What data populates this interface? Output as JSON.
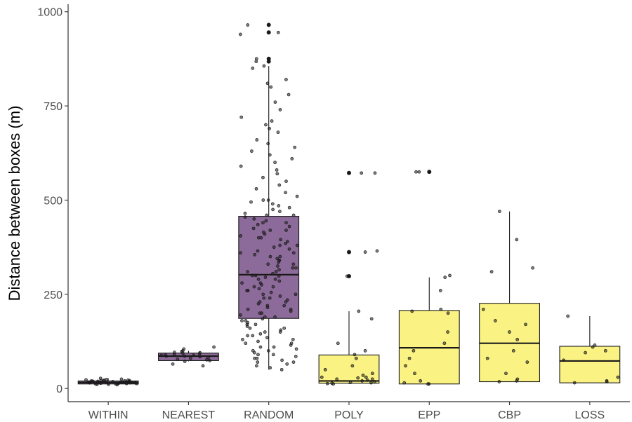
{
  "chart_data": {
    "type": "boxplot",
    "title": "",
    "xlabel": "",
    "ylabel": "Distance between boxes (m)",
    "ylim": [
      -35,
      1020
    ],
    "yticks": [
      0,
      250,
      500,
      750,
      1000
    ],
    "grid": false,
    "legend": "none",
    "colors": {
      "purple": "#8c6a99",
      "yellow": "#faf283",
      "box_stroke": "#1a1a1a",
      "point": "#1a1a1a",
      "axis": "#333333"
    },
    "categories": [
      "WITHIN",
      "NEAREST",
      "RANDOM",
      "POLY",
      "EPP",
      "CBP",
      "LOSS"
    ],
    "boxes": [
      {
        "name": "WITHIN",
        "fill": "purple",
        "whisker_low": 10,
        "q1": 12,
        "median": 16,
        "q3": 20,
        "whisker_high": 27
      },
      {
        "name": "NEAREST",
        "fill": "purple",
        "whisker_low": 72,
        "q1": 74,
        "median": 86,
        "q3": 94,
        "whisker_high": 100
      },
      {
        "name": "RANDOM",
        "fill": "purple",
        "whisker_low": 50,
        "q1": 186,
        "median": 302,
        "q3": 457,
        "whisker_high": 856
      },
      {
        "name": "POLY",
        "fill": "yellow",
        "whisker_low": 12,
        "q1": 14,
        "median": 20,
        "q3": 89,
        "whisker_high": 205
      },
      {
        "name": "EPP",
        "fill": "yellow",
        "whisker_low": 12,
        "q1": 12,
        "median": 108,
        "q3": 207,
        "whisker_high": 295
      },
      {
        "name": "CBP",
        "fill": "yellow",
        "whisker_low": 18,
        "q1": 18,
        "median": 120,
        "q3": 226,
        "whisker_high": 470
      },
      {
        "name": "LOSS",
        "fill": "yellow",
        "whisker_low": 15,
        "q1": 15,
        "median": 73,
        "q3": 112,
        "whisker_high": 192
      }
    ],
    "outliers": [
      {
        "group": "RANDOM",
        "values": [
          965,
          945,
          875,
          868
        ]
      },
      {
        "group": "POLY",
        "values": [
          572,
          362,
          298
        ]
      },
      {
        "group": "EPP",
        "values": [
          575
        ]
      }
    ],
    "points": [
      {
        "group": "WITHIN",
        "values": [
          10,
          11,
          12,
          13,
          14,
          14,
          15,
          15,
          16,
          16,
          16,
          17,
          17,
          18,
          18,
          19,
          20,
          20,
          21,
          22,
          23,
          24,
          25,
          27,
          12,
          14,
          16,
          18,
          20,
          22,
          13,
          15,
          17,
          19,
          21,
          11,
          15,
          17
        ]
      },
      {
        "group": "NEAREST",
        "values": [
          60,
          65,
          72,
          74,
          76,
          78,
          80,
          82,
          84,
          86,
          88,
          90,
          92,
          94,
          95,
          96,
          98,
          100,
          105,
          110,
          86,
          88,
          90
        ]
      },
      {
        "group": "RANDOM",
        "values": [
          965,
          945,
          940,
          875,
          868,
          856,
          850,
          820,
          810,
          800,
          780,
          760,
          740,
          720,
          710,
          700,
          690,
          680,
          660,
          650,
          640,
          630,
          620,
          610,
          600,
          590,
          580,
          570,
          560,
          550,
          540,
          530,
          520,
          510,
          500,
          495,
          490,
          485,
          480,
          475,
          470,
          465,
          460,
          455,
          450,
          445,
          440,
          435,
          430,
          425,
          420,
          415,
          410,
          405,
          400,
          395,
          390,
          385,
          380,
          375,
          370,
          365,
          360,
          355,
          350,
          345,
          340,
          335,
          330,
          325,
          320,
          315,
          310,
          305,
          300,
          298,
          295,
          290,
          285,
          280,
          275,
          270,
          265,
          260,
          255,
          250,
          245,
          240,
          235,
          230,
          225,
          220,
          215,
          210,
          205,
          200,
          195,
          190,
          185,
          180,
          175,
          170,
          165,
          160,
          155,
          150,
          145,
          140,
          135,
          130,
          125,
          120,
          115,
          110,
          105,
          100,
          95,
          90,
          85,
          80,
          75,
          70,
          65,
          60,
          55,
          50,
          420,
          380,
          340,
          300,
          260,
          220,
          180,
          140,
          100,
          460,
          400,
          350,
          310,
          270,
          230,
          190,
          150,
          110,
          90,
          70,
          330,
          290,
          250,
          210,
          170,
          130,
          500,
          440,
          360,
          320,
          280,
          240,
          200,
          160,
          120,
          80
        ]
      },
      {
        "group": "POLY",
        "values": [
          572,
          572,
          365,
          362,
          298,
          205,
          185,
          120,
          100,
          90,
          80,
          60,
          50,
          40,
          35,
          30,
          28,
          25,
          22,
          20,
          18,
          16,
          15,
          14,
          13,
          12,
          25,
          30
        ]
      },
      {
        "group": "EPP",
        "values": [
          575,
          575,
          300,
          295,
          260,
          210,
          205,
          200,
          150,
          120,
          100,
          80,
          60,
          40,
          20,
          12,
          12,
          15
        ]
      },
      {
        "group": "CBP",
        "values": [
          470,
          395,
          320,
          310,
          210,
          180,
          170,
          150,
          130,
          100,
          80,
          70,
          40,
          25,
          20,
          18
        ]
      },
      {
        "group": "LOSS",
        "values": [
          192,
          115,
          110,
          100,
          95,
          75,
          30,
          20,
          18,
          15
        ]
      }
    ]
  }
}
